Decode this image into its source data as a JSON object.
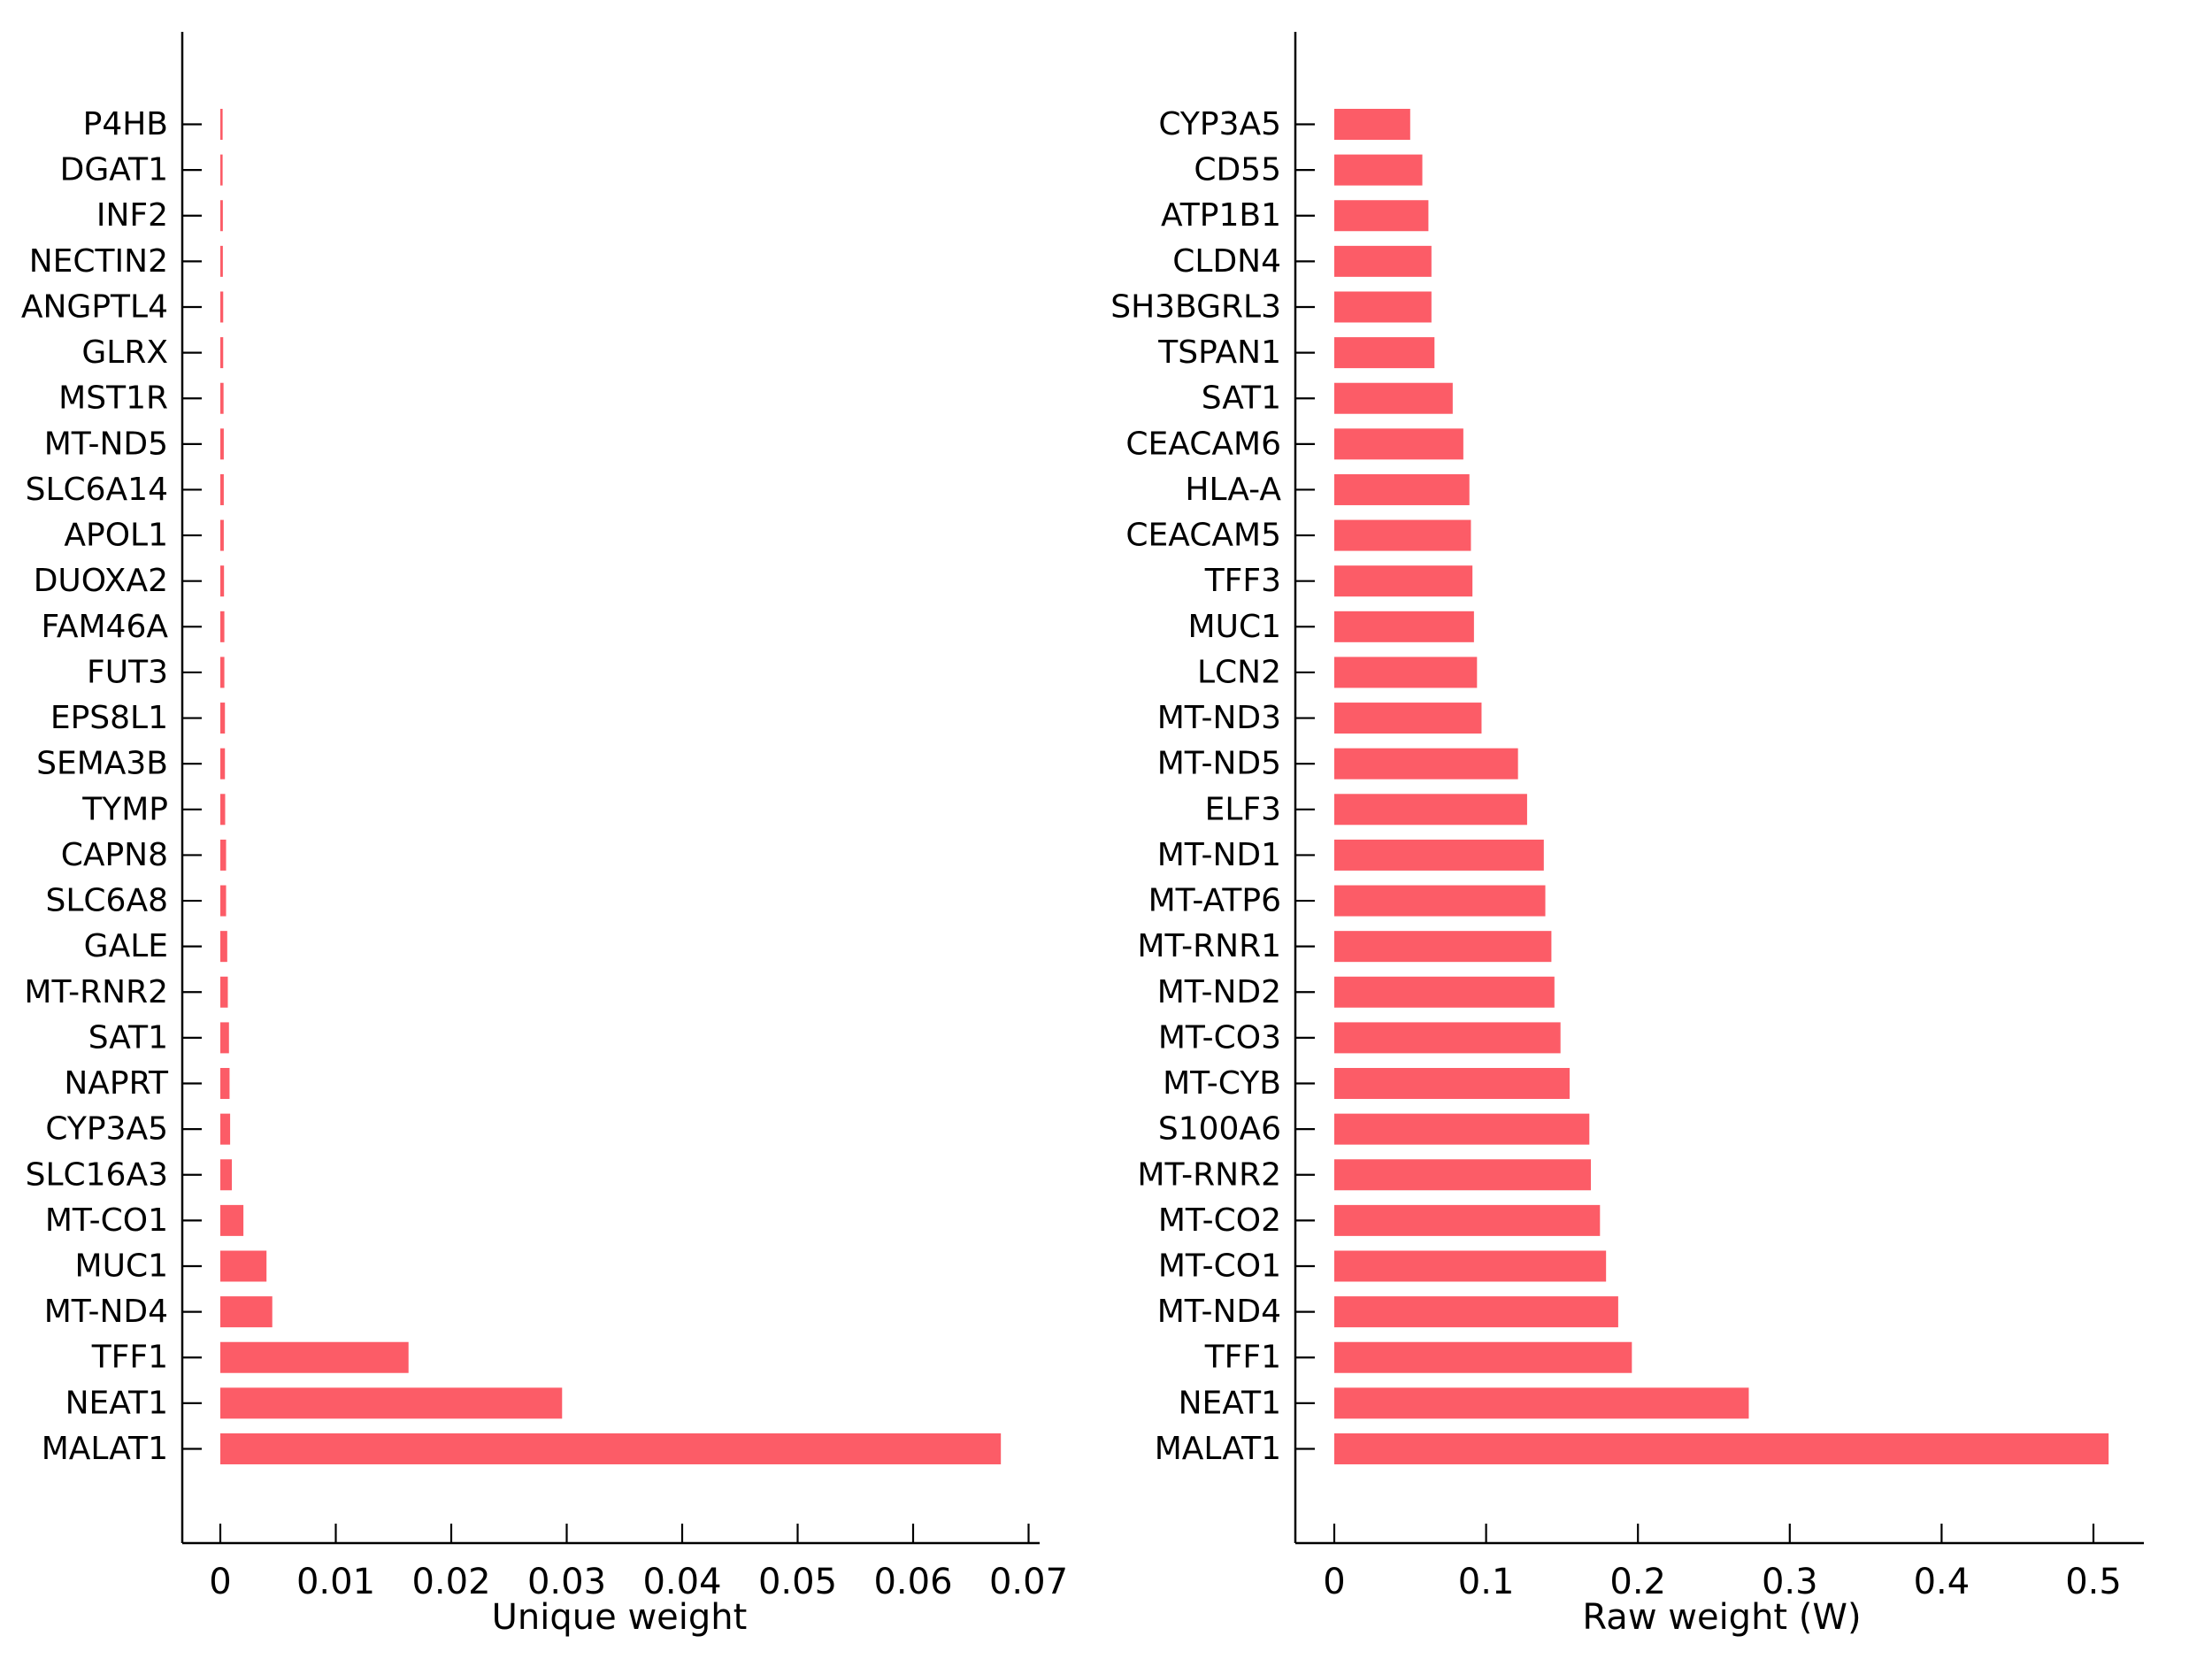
{
  "figure": {
    "background": "#FFFFFF",
    "bar_color": "#FC5C67",
    "axis_color": "#000000",
    "text_color": "#000000"
  },
  "chart_data": [
    {
      "type": "bar",
      "orientation": "horizontal",
      "title": "",
      "xlabel": "Unique weight",
      "ylabel": "",
      "xlim": [
        0,
        0.07
      ],
      "grid": false,
      "legend": "none",
      "xtick_values": [
        0,
        0.01,
        0.02,
        0.03,
        0.04,
        0.05,
        0.06,
        0.07
      ],
      "xtick_labels": [
        "0",
        "0.01",
        "0.02",
        "0.03",
        "0.04",
        "0.05",
        "0.06",
        "0.07"
      ],
      "categories": [
        "P4HB",
        "DGAT1",
        "INF2",
        "NECTIN2",
        "ANGPTL4",
        "GLRX",
        "MST1R",
        "MT-ND5",
        "SLC6A14",
        "APOL1",
        "DUOXA2",
        "FAM46A",
        "FUT3",
        "EPS8L1",
        "SEMA3B",
        "TYMP",
        "CAPN8",
        "SLC6A8",
        "GALE",
        "MT-RNR2",
        "SAT1",
        "NAPRT",
        "CYP3A5",
        "SLC16A3",
        "MT-CO1",
        "MUC1",
        "MT-ND4",
        "TFF1",
        "NEAT1",
        "MALAT1"
      ],
      "values": [
        0.0002,
        0.0002,
        0.00022,
        0.00022,
        0.00025,
        0.00025,
        0.00028,
        0.0003,
        0.0003,
        0.0003,
        0.00032,
        0.00035,
        0.00035,
        0.0004,
        0.0004,
        0.00042,
        0.0005,
        0.0005,
        0.0006,
        0.00065,
        0.00075,
        0.0008,
        0.00085,
        0.001,
        0.002,
        0.004,
        0.0045,
        0.0163,
        0.0296,
        0.0676
      ]
    },
    {
      "type": "bar",
      "orientation": "horizontal",
      "title": "",
      "xlabel": "Raw weight (W)",
      "ylabel": "",
      "xlim": [
        0,
        0.53
      ],
      "grid": false,
      "legend": "none",
      "xtick_values": [
        0,
        0.1,
        0.2,
        0.3,
        0.4,
        0.5
      ],
      "xtick_labels": [
        "0",
        "0.1",
        "0.2",
        "0.3",
        "0.4",
        "0.5"
      ],
      "categories": [
        "CYP3A5",
        "CD55",
        "ATP1B1",
        "CLDN4",
        "SH3BGRL3",
        "TSPAN1",
        "SAT1",
        "CEACAM6",
        "HLA-A",
        "CEACAM5",
        "TFF3",
        "MUC1",
        "LCN2",
        "MT-ND3",
        "MT-ND5",
        "ELF3",
        "MT-ND1",
        "MT-ATP6",
        "MT-RNR1",
        "MT-ND2",
        "MT-CO3",
        "MT-CYB",
        "S100A6",
        "MT-RNR2",
        "MT-CO2",
        "MT-CO1",
        "MT-ND4",
        "TFF1",
        "NEAT1",
        "MALAT1"
      ],
      "values": [
        0.05,
        0.058,
        0.062,
        0.064,
        0.064,
        0.066,
        0.078,
        0.085,
        0.089,
        0.09,
        0.091,
        0.092,
        0.094,
        0.097,
        0.121,
        0.127,
        0.138,
        0.139,
        0.143,
        0.145,
        0.149,
        0.155,
        0.168,
        0.169,
        0.175,
        0.179,
        0.187,
        0.196,
        0.273,
        0.51
      ]
    }
  ]
}
